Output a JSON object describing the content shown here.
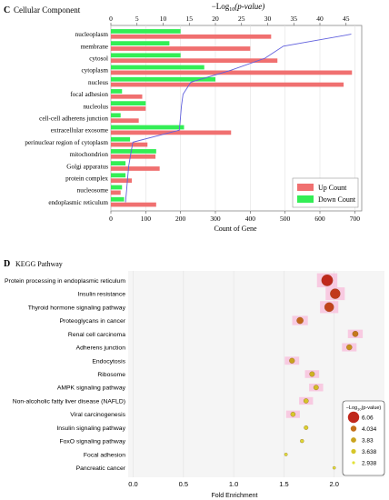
{
  "chart_data": [
    {
      "panel": "C",
      "title": "Cellular Component",
      "type": "bar",
      "orientation": "horizontal",
      "xlabel": "Count of Gene",
      "x_ticks": [
        "0",
        "100",
        "200",
        "300",
        "400",
        "500",
        "600",
        "700"
      ],
      "xlim": [
        0,
        720
      ],
      "top_axis_label_prefix": "−Log",
      "top_axis_label_sub": "10",
      "top_axis_label_suffix": "(p-value)",
      "top_ticks": [
        "0",
        "5",
        "10",
        "15",
        "20",
        "25",
        "30",
        "35",
        "40",
        "45"
      ],
      "top_xlim": [
        0,
        48
      ],
      "categories": [
        "nucleoplasm",
        "membrane",
        "cytosol",
        "cytoplasm",
        "nucleus",
        "focal adhesion",
        "nucleolus",
        "cell-cell adherens junction",
        "extracellular exosome",
        "perinuclear region of cytoplasm",
        "mitochondrion",
        "Golgi apparatus",
        "protein complex",
        "nucleosome",
        "endoplasmic reticulum"
      ],
      "series": [
        {
          "name": "Up Count",
          "color": "#f07070",
          "values": [
            460,
            400,
            478,
            692,
            668,
            90,
            100,
            80,
            345,
            105,
            128,
            140,
            60,
            28,
            130
          ]
        },
        {
          "name": "Down Count",
          "color": "#33ee55",
          "values": [
            200,
            168,
            200,
            268,
            300,
            32,
            100,
            28,
            210,
            55,
            130,
            42,
            42,
            32,
            38
          ]
        }
      ],
      "line": {
        "name": "−Log10(p-value)",
        "color": "#6060dd",
        "values": [
          46,
          33,
          29.5,
          23,
          15.3,
          13.8,
          13.5,
          13.3,
          13.1,
          4.2,
          3.8,
          3.4,
          3.2,
          3.0,
          2.8
        ]
      },
      "grid": true,
      "legend_position": "bottom-right"
    },
    {
      "panel": "D",
      "title": "KEGG Pathway",
      "type": "scatter",
      "xlabel": "Fold Enrichment",
      "x_ticks": [
        "0.0",
        "0.5",
        "1.0",
        "1.5",
        "2.0"
      ],
      "xlim": [
        -0.05,
        2.5
      ],
      "categories": [
        "Protein processing in endoplasmic reticulum",
        "Insulin resistance",
        "Thyroid hormone signaling pathway",
        "Proteoglycans in cancer",
        "Renal cell carcinoma",
        "Adherens junction",
        "Endocytosis",
        "Ribosome",
        "AMPK signaling pathway",
        "Non-alcoholic fatty liver disease (NAFLD)",
        "Viral carcinogenesis",
        "Insulin signaling pathway",
        "FoxO signaling pathway",
        "Focal adhesion",
        "Pancreatic cancer"
      ],
      "points": [
        {
          "x": 1.93,
          "p": 6.06
        },
        {
          "x": 2.01,
          "p": 5.6
        },
        {
          "x": 1.95,
          "p": 5.3
        },
        {
          "x": 1.66,
          "p": 4.3
        },
        {
          "x": 2.21,
          "p": 4.0
        },
        {
          "x": 2.15,
          "p": 3.9
        },
        {
          "x": 1.58,
          "p": 3.83
        },
        {
          "x": 1.78,
          "p": 3.75
        },
        {
          "x": 1.82,
          "p": 3.7
        },
        {
          "x": 1.72,
          "p": 3.65
        },
        {
          "x": 1.59,
          "p": 3.6
        },
        {
          "x": 1.72,
          "p": 3.4
        },
        {
          "x": 1.68,
          "p": 3.2
        },
        {
          "x": 1.52,
          "p": 3.0
        },
        {
          "x": 2.0,
          "p": 2.938
        }
      ],
      "legend_title_prefix": "−Log",
      "legend_title_sub": "10",
      "legend_title_suffix": "(p-value)",
      "legend": [
        {
          "label": "6.06",
          "value": 6.06,
          "color": "#c0281c"
        },
        {
          "label": "4.034",
          "value": 4.034,
          "color": "#c4701a"
        },
        {
          "label": "3.83",
          "value": 3.83,
          "color": "#c9a31e"
        },
        {
          "label": "3.638",
          "value": 3.638,
          "color": "#d6c62a"
        },
        {
          "label": "2.938",
          "value": 2.938,
          "color": "#e2e23a"
        }
      ],
      "grid": true,
      "legend_position": "bottom-right"
    }
  ]
}
